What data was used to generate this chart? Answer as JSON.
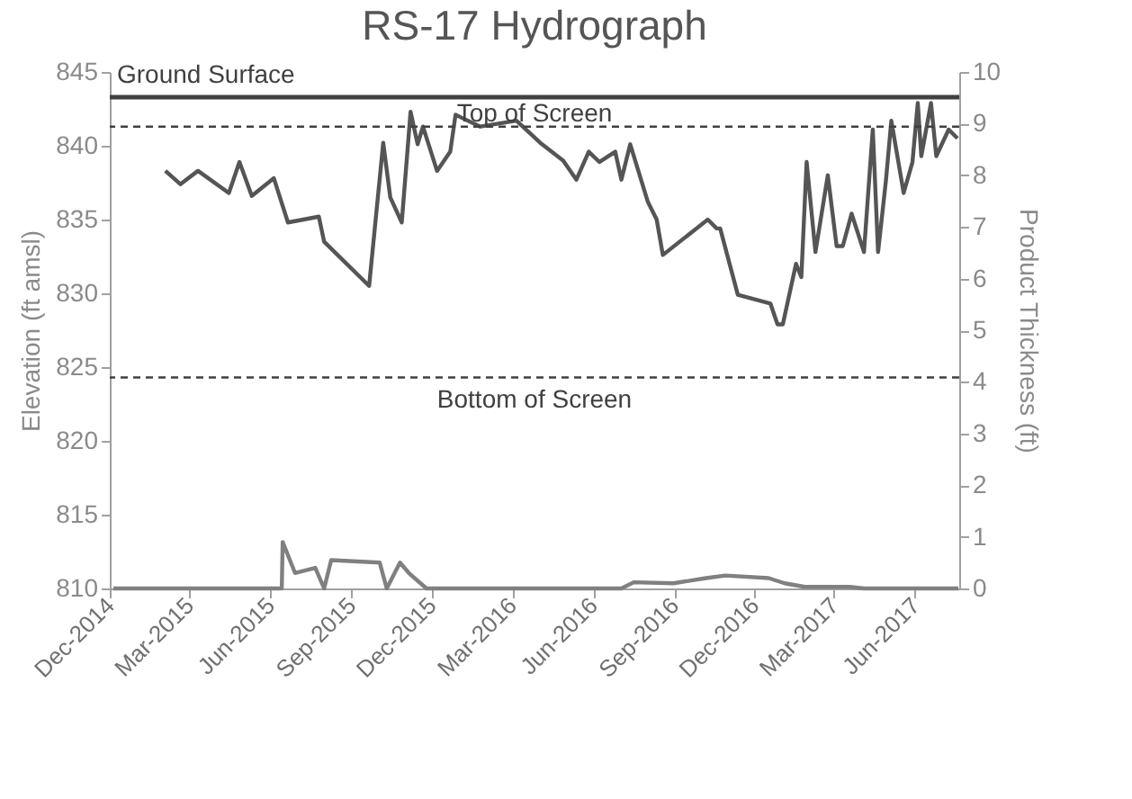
{
  "chart_data": {
    "type": "line",
    "title": "RS-17 Hydrograph",
    "ylabel": "Elevation (ft amsl)",
    "y2label": "Product Thickness (ft)",
    "xlim": [
      "2014-12-01",
      "2017-07-21"
    ],
    "xticks": [
      {
        "value": "2014-12-01",
        "label": "Dec-2014"
      },
      {
        "value": "2015-03-01",
        "label": "Mar-2015"
      },
      {
        "value": "2015-06-01",
        "label": "Jun-2015"
      },
      {
        "value": "2015-09-01",
        "label": "Sep-2015"
      },
      {
        "value": "2015-12-01",
        "label": "Dec-2015"
      },
      {
        "value": "2016-03-01",
        "label": "Mar-2016"
      },
      {
        "value": "2016-06-01",
        "label": "Jun-2016"
      },
      {
        "value": "2016-09-01",
        "label": "Sep-2016"
      },
      {
        "value": "2016-12-01",
        "label": "Dec-2016"
      },
      {
        "value": "2017-03-01",
        "label": "Mar-2017"
      },
      {
        "value": "2017-06-01",
        "label": "Jun-2017"
      }
    ],
    "ylim": [
      810,
      845
    ],
    "yticks": [
      810,
      815,
      820,
      825,
      830,
      835,
      840,
      845
    ],
    "y2lim": [
      0,
      10
    ],
    "y2ticks": [
      0,
      1,
      2,
      3,
      4,
      5,
      6,
      7,
      8,
      9,
      10
    ],
    "grid": false,
    "series": [
      {
        "color": "#555555",
        "x": [
          "2015-02-02",
          "2015-02-19",
          "2015-03-11",
          "2015-04-15",
          "2015-04-27",
          "2015-05-11",
          "2015-06-05",
          "2015-06-21",
          "2015-07-26",
          "2015-08-01",
          "2015-09-21",
          "2015-10-07",
          "2015-10-15",
          "2015-10-28",
          "2015-11-07",
          "2015-11-15",
          "2015-11-21",
          "2015-12-07",
          "2015-12-22",
          "2015-12-28",
          "2016-01-25",
          "2016-03-06",
          "2016-04-02",
          "2016-04-28",
          "2016-05-13",
          "2016-05-27",
          "2016-06-08",
          "2016-06-26",
          "2016-07-03",
          "2016-07-13",
          "2016-08-02",
          "2016-08-12",
          "2016-08-19",
          "2016-10-09",
          "2016-10-19",
          "2016-10-23",
          "2016-11-12",
          "2016-12-19",
          "2016-12-27",
          "2017-01-02",
          "2017-01-17",
          "2017-01-23",
          "2017-01-29",
          "2017-02-08",
          "2017-02-22",
          "2017-03-04",
          "2017-03-11",
          "2017-03-21",
          "2017-04-04",
          "2017-04-14",
          "2017-04-20",
          "2017-04-29",
          "2017-05-05",
          "2017-05-19",
          "2017-05-29",
          "2017-06-04",
          "2017-06-08",
          "2017-06-19",
          "2017-06-25",
          "2017-07-09",
          "2017-07-19"
        ],
        "values": [
          838.3,
          837.4,
          838.3,
          836.8,
          838.9,
          836.6,
          837.8,
          834.8,
          835.2,
          833.5,
          830.5,
          840.2,
          836.5,
          834.8,
          842.3,
          840.1,
          841.3,
          838.3,
          839.6,
          842.1,
          841.3,
          841.7,
          840.2,
          839.0,
          837.7,
          839.6,
          838.9,
          839.6,
          837.7,
          840.1,
          836.2,
          835.0,
          832.6,
          835.0,
          834.4,
          834.4,
          829.9,
          829.3,
          827.9,
          827.9,
          832.0,
          831.1,
          838.9,
          832.8,
          838.0,
          833.2,
          833.2,
          835.4,
          832.8,
          841.1,
          832.8,
          837.7,
          841.7,
          836.8,
          838.9,
          842.9,
          839.3,
          842.9,
          839.3,
          841.1,
          840.5
        ]
      },
      {
        "color": "#808080",
        "axis": "y2",
        "x": [
          "2014-12-05",
          "2015-06-14",
          "2015-06-15",
          "2015-06-29",
          "2015-07-22",
          "2015-08-01",
          "2015-08-09",
          "2015-10-03",
          "2015-10-11",
          "2015-10-26",
          "2015-11-05",
          "2015-11-25",
          "2016-07-03",
          "2016-07-17",
          "2016-08-31",
          "2016-10-07",
          "2016-10-29",
          "2016-12-17",
          "2017-01-04",
          "2017-01-27",
          "2017-03-19",
          "2017-04-04",
          "2017-07-20"
        ],
        "values": [
          0,
          0,
          0.9,
          0.3,
          0.4,
          0,
          0.55,
          0.5,
          0,
          0.5,
          0.3,
          0,
          0,
          0.12,
          0.1,
          0.2,
          0.25,
          0.2,
          0.1,
          0.03,
          0.03,
          0,
          0
        ]
      }
    ],
    "ref_lines": [
      {
        "axis": "y",
        "value": 843.3,
        "label": "Ground Surface",
        "line_style": "solid"
      },
      {
        "axis": "y",
        "value": 841.3,
        "label": "Top of Screen",
        "line_style": "dashed"
      },
      {
        "axis": "y",
        "value": 824.3,
        "label": "Bottom of Screen",
        "line_style": "dashed"
      }
    ]
  }
}
